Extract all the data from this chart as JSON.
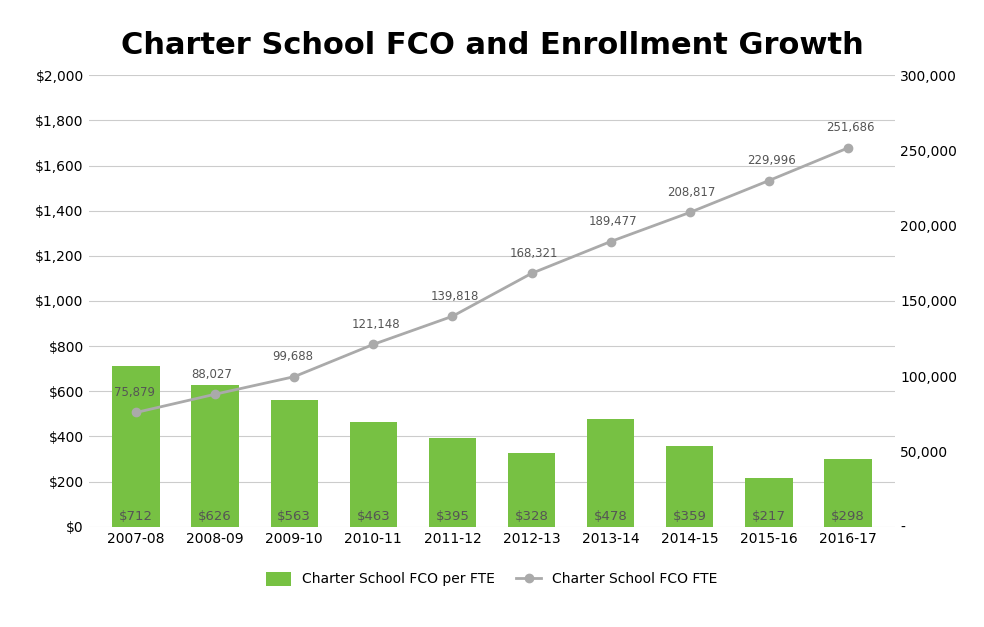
{
  "title": "Charter School FCO and Enrollment Growth",
  "categories": [
    "2007-08",
    "2008-09",
    "2009-10",
    "2010-11",
    "2011-12",
    "2012-13",
    "2013-14",
    "2014-15",
    "2015-16",
    "2016-17"
  ],
  "bar_values": [
    712,
    626,
    563,
    463,
    395,
    328,
    478,
    359,
    217,
    298
  ],
  "bar_labels": [
    "$712",
    "$626",
    "$563",
    "$463",
    "$395",
    "$328",
    "$478",
    "$359",
    "$217",
    "$298"
  ],
  "line_values": [
    75879,
    88027,
    99688,
    121148,
    139818,
    168321,
    189477,
    208817,
    229996,
    251686
  ],
  "line_labels": [
    "75,879",
    "88,027",
    "99,688",
    "121,148",
    "139,818",
    "168,321",
    "189,477",
    "208,817",
    "229,996",
    "251,686"
  ],
  "bar_color": "#77C143",
  "line_color": "#AAAAAA",
  "legend_bar_label": "Charter School FCO per FTE",
  "legend_line_label": "Charter School FCO FTE",
  "left_ylim": [
    0,
    2000
  ],
  "right_ylim": [
    0,
    300000
  ],
  "left_yticks": [
    0,
    200,
    400,
    600,
    800,
    1000,
    1200,
    1400,
    1600,
    1800,
    2000
  ],
  "right_yticks": [
    0,
    50000,
    100000,
    150000,
    200000,
    250000,
    300000
  ],
  "background_color": "#FFFFFF",
  "title_fontsize": 22,
  "title_fontweight": "bold",
  "bar_label_color": "#555555",
  "line_label_color": "#555555",
  "line_label_x_offsets": [
    -0.28,
    -0.3,
    -0.28,
    -0.28,
    -0.28,
    -0.28,
    -0.28,
    -0.28,
    -0.28,
    -0.28
  ],
  "line_label_y_offsets": [
    9000,
    9000,
    9000,
    9000,
    9000,
    9000,
    9000,
    9000,
    9000,
    9000
  ]
}
